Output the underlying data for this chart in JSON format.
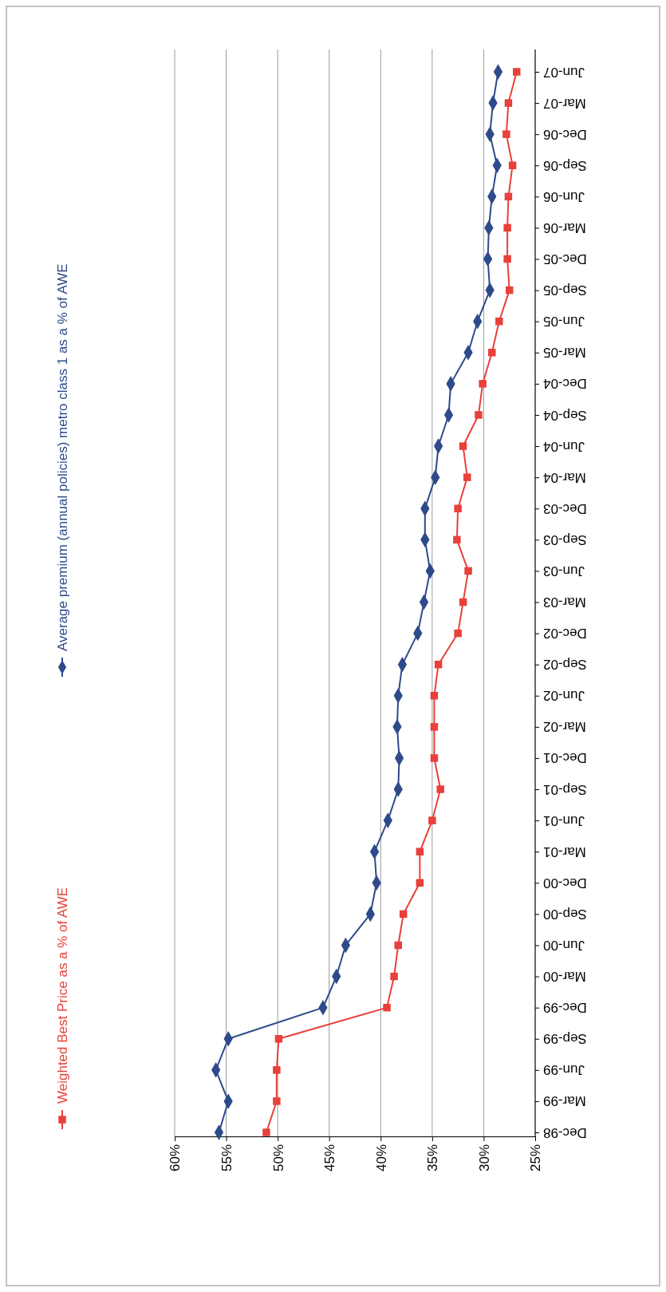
{
  "chart_data": {
    "type": "line",
    "categories": [
      "Jun-07",
      "Mar-07",
      "Dec-06",
      "Sep-06",
      "Jun-06",
      "Mar-06",
      "Dec-05",
      "Sep-05",
      "Jun-05",
      "Mar-05",
      "Dec-04",
      "Sep-04",
      "Jun-04",
      "Mar-04",
      "Dec-03",
      "Sep-03",
      "Jun-03",
      "Mar-03",
      "Dec-02",
      "Sep-02",
      "Jun-02",
      "Mar-02",
      "Dec-01",
      "Sep-01",
      "Jun-01",
      "Mar-01",
      "Dec-00",
      "Sep-00",
      "Jun-00",
      "Mar-00",
      "Dec-99",
      "Sep-99",
      "Jun-99",
      "Mar-99",
      "Dec-98"
    ],
    "series": [
      {
        "name": "Weighted Best Price as a % of AWE",
        "color": "#e8403a",
        "marker": "square",
        "values": [
          26.8,
          27.6,
          27.8,
          27.2,
          27.6,
          27.7,
          27.7,
          27.5,
          28.5,
          29.2,
          30.1,
          30.5,
          32.0,
          31.6,
          32.5,
          32.6,
          31.5,
          32.0,
          32.5,
          34.4,
          34.8,
          34.8,
          34.8,
          34.2,
          35.0,
          36.2,
          36.2,
          37.8,
          38.3,
          38.7,
          39.4,
          49.9,
          50.1,
          50.1,
          51.1
        ]
      },
      {
        "name": "Average premium (annual policies)  metro class 1 as a % of AWE",
        "color": "#2e4a8a",
        "marker": "diamond",
        "values": [
          28.6,
          29.1,
          29.4,
          28.7,
          29.2,
          29.5,
          29.6,
          29.4,
          30.6,
          31.5,
          33.2,
          33.4,
          34.4,
          34.7,
          35.7,
          35.7,
          35.2,
          35.8,
          36.4,
          37.9,
          38.3,
          38.4,
          38.2,
          38.3,
          39.3,
          40.6,
          40.4,
          41.0,
          43.4,
          44.3,
          45.6,
          54.8,
          56.0,
          54.8,
          55.7
        ]
      }
    ],
    "orientation": "horizontal",
    "xlim": [
      60,
      25
    ],
    "xticks": [
      {
        "value": 60,
        "label": "60%"
      },
      {
        "value": 55,
        "label": "55%"
      },
      {
        "value": 50,
        "label": "50%"
      },
      {
        "value": 45,
        "label": "45%"
      },
      {
        "value": 40,
        "label": "40%"
      },
      {
        "value": 35,
        "label": "35%"
      },
      {
        "value": 30,
        "label": "30%"
      },
      {
        "value": 25,
        "label": "25%"
      }
    ],
    "grid": "x",
    "legend": "left",
    "line_style": "solid"
  }
}
